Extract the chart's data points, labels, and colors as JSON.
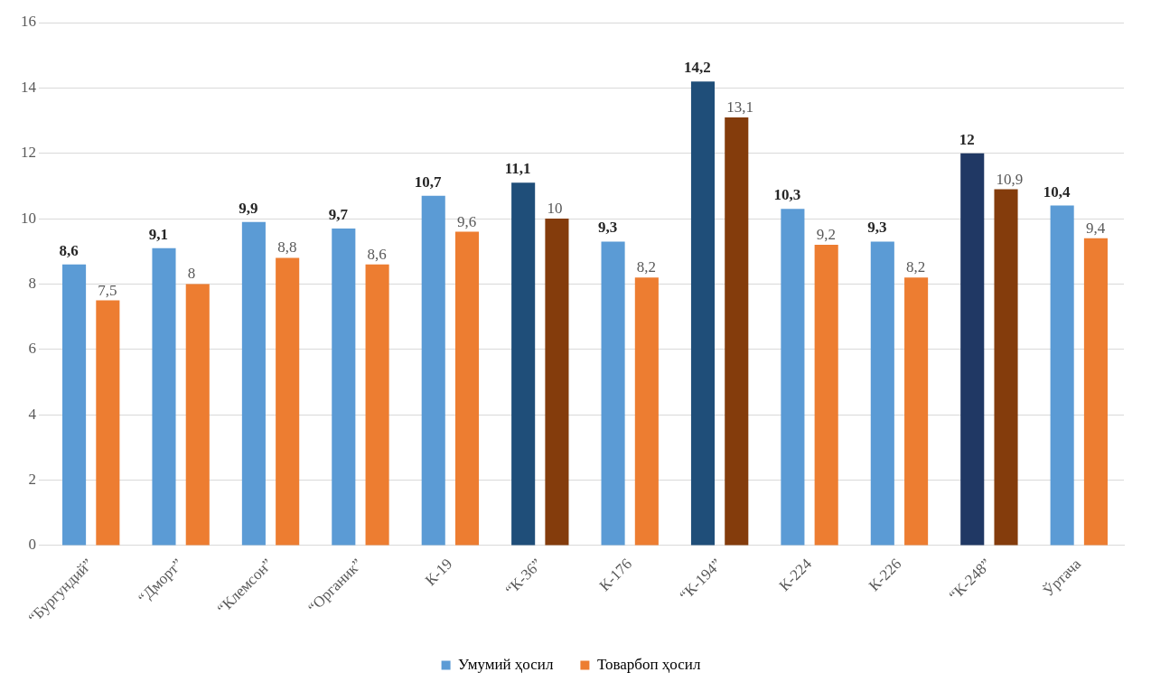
{
  "chart_data": {
    "type": "bar",
    "categories": [
      "“Бургундий”",
      "“Дморт”",
      "“Клемсон”",
      "“Органик”",
      "К-19",
      "“К-36”",
      "К-176",
      "“К-194”",
      "К-224",
      "К-226",
      "“К-248”",
      "Ўртача"
    ],
    "series": [
      {
        "name": "Умумий ҳосил",
        "color": "#5b9bd5",
        "colors": [
          "#5b9bd5",
          "#5b9bd5",
          "#5b9bd5",
          "#5b9bd5",
          "#5b9bd5",
          "#1f4e79",
          "#5b9bd5",
          "#1f4e79",
          "#5b9bd5",
          "#5b9bd5",
          "#203864",
          "#5b9bd5"
        ],
        "values": [
          8.6,
          9.1,
          9.9,
          9.7,
          10.7,
          11.1,
          9.3,
          14.2,
          10.3,
          9.3,
          12,
          10.4
        ],
        "value_labels": [
          "8,6",
          "9,1",
          "9,9",
          "9,7",
          "10,7",
          "11,1",
          "9,3",
          "14,2",
          "10,3",
          "9,3",
          "12",
          "10,4"
        ]
      },
      {
        "name": "Товарбоп ҳосил",
        "color": "#ed7d31",
        "colors": [
          "#ed7d31",
          "#ed7d31",
          "#ed7d31",
          "#ed7d31",
          "#ed7d31",
          "#843c0c",
          "#ed7d31",
          "#843c0c",
          "#ed7d31",
          "#ed7d31",
          "#843c0c",
          "#ed7d31"
        ],
        "values": [
          7.5,
          8,
          8.8,
          8.6,
          9.6,
          10,
          8.2,
          13.1,
          9.2,
          8.2,
          10.9,
          9.4
        ],
        "value_labels": [
          "7,5",
          "8",
          "8,8",
          "8,6",
          "9,6",
          "10",
          "8,2",
          "13,1",
          "9,2",
          "8,2",
          "10,9",
          "9,4"
        ]
      }
    ],
    "ylim": [
      0,
      16
    ],
    "yticks": [
      0,
      2,
      4,
      6,
      8,
      10,
      12,
      14,
      16
    ],
    "grid": "y",
    "legend": "bottom"
  }
}
